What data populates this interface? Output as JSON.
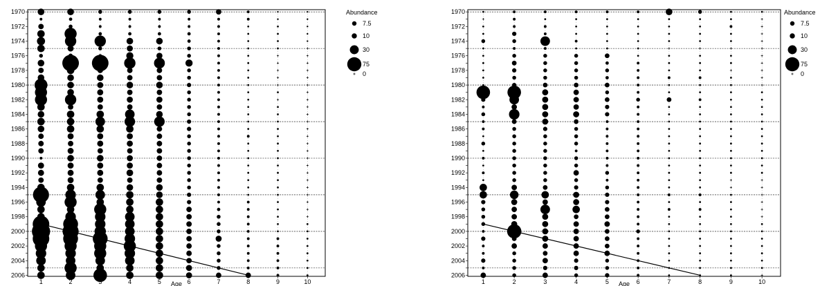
{
  "chart_data": [
    {
      "type": "scatter",
      "subtype": "bubble",
      "title": "",
      "xlabel": "Age",
      "ylabel": "",
      "x": [
        1,
        2,
        3,
        4,
        5,
        6,
        7,
        8,
        9,
        10
      ],
      "xlim": [
        0.55,
        10.6
      ],
      "ylim": [
        1969.7,
        2006.9
      ],
      "y_reversed": true,
      "grid": "horizontal dashed lines at 1970, 1975, 1980, 1985, 1990, 1995, 2000, 2005",
      "legend": {
        "title": "Abundance",
        "placement": "right",
        "entries": [
          {
            "label": "7.5",
            "value": 7.5
          },
          {
            "label": "10",
            "value": 10
          },
          {
            "label": "30",
            "value": 30
          },
          {
            "label": "75",
            "value": 75
          },
          {
            "label": "0",
            "value": 0,
            "marker": "plus"
          }
        ]
      },
      "cohort_line": {
        "from": [
          1,
          1999
        ],
        "to": [
          8,
          2006
        ]
      },
      "cells": {
        "years": [
          1970,
          1971,
          1972,
          1973,
          1974,
          1975,
          1976,
          1977,
          1978,
          1979,
          1980,
          1981,
          1982,
          1983,
          1984,
          1985,
          1986,
          1987,
          1988,
          1989,
          1990,
          1991,
          1992,
          1993,
          1994,
          1995,
          1996,
          1997,
          1998,
          1999,
          2000,
          2001,
          2002,
          2003,
          2004,
          2005,
          2006
        ],
        "abundance_by_year": [
          [
            12,
            12,
            4,
            4,
            4,
            4,
            8,
            2,
            0.5,
            0.5
          ],
          [
            2,
            3,
            2,
            2,
            2,
            2,
            2,
            2,
            0.5,
            0.5
          ],
          [
            8,
            4,
            2,
            2,
            2,
            2,
            2,
            1,
            1,
            0.5
          ],
          [
            15,
            40,
            3,
            3,
            3,
            3,
            2,
            1,
            1,
            0.5
          ],
          [
            18,
            35,
            35,
            12,
            12,
            3,
            2,
            1,
            1,
            0.5
          ],
          [
            15,
            10,
            4,
            10,
            4,
            4,
            2,
            1,
            1,
            0
          ],
          [
            4,
            5,
            3,
            14,
            10,
            4,
            2,
            1,
            0,
            0
          ],
          [
            12,
            75,
            75,
            35,
            32,
            14,
            2,
            1,
            0,
            0
          ],
          [
            8,
            15,
            8,
            8,
            8,
            4,
            2,
            1,
            0,
            0
          ],
          [
            12,
            12,
            12,
            8,
            8,
            4,
            2,
            1,
            0,
            0
          ],
          [
            45,
            12,
            10,
            12,
            12,
            5,
            2,
            1,
            0,
            0
          ],
          [
            40,
            12,
            10,
            8,
            8,
            4,
            2,
            1,
            1,
            0
          ],
          [
            40,
            35,
            10,
            10,
            10,
            4,
            2,
            1,
            0,
            0
          ],
          [
            15,
            8,
            8,
            8,
            8,
            4,
            2,
            1,
            1,
            0
          ],
          [
            12,
            15,
            15,
            25,
            12,
            4,
            2,
            1,
            1,
            0
          ],
          [
            15,
            15,
            25,
            30,
            30,
            5,
            2,
            1,
            1,
            0
          ],
          [
            12,
            15,
            15,
            15,
            8,
            5,
            2,
            1,
            1,
            0
          ],
          [
            8,
            10,
            10,
            10,
            8,
            4,
            2,
            2,
            1,
            0
          ],
          [
            8,
            8,
            10,
            10,
            8,
            4,
            2,
            1,
            1,
            0
          ],
          [
            8,
            10,
            8,
            8,
            8,
            4,
            2,
            1,
            1,
            0
          ],
          [
            2,
            12,
            12,
            10,
            8,
            4,
            2,
            1,
            1,
            0
          ],
          [
            10,
            10,
            10,
            10,
            8,
            4,
            2,
            1,
            1,
            0
          ],
          [
            10,
            10,
            10,
            12,
            8,
            4,
            2,
            1,
            1,
            0
          ],
          [
            8,
            10,
            8,
            8,
            8,
            4,
            2,
            1,
            1,
            0
          ],
          [
            15,
            15,
            15,
            12,
            12,
            4,
            2,
            1,
            1,
            0
          ],
          [
            70,
            30,
            25,
            15,
            12,
            5,
            2,
            1,
            1,
            0
          ],
          [
            25,
            40,
            15,
            15,
            15,
            5,
            2,
            2,
            1,
            0
          ],
          [
            15,
            15,
            40,
            15,
            15,
            8,
            3,
            2,
            1,
            0
          ],
          [
            15,
            30,
            30,
            25,
            15,
            8,
            4,
            2,
            1,
            0
          ],
          [
            75,
            60,
            30,
            25,
            15,
            8,
            4,
            2,
            1,
            1
          ],
          [
            90,
            70,
            35,
            25,
            15,
            8,
            4,
            2,
            1,
            1
          ],
          [
            75,
            60,
            60,
            30,
            15,
            8,
            10,
            2,
            2,
            1
          ],
          [
            40,
            40,
            40,
            40,
            15,
            8,
            4,
            2,
            2,
            1
          ],
          [
            30,
            30,
            40,
            30,
            15,
            8,
            4,
            2,
            2,
            1
          ],
          [
            25,
            25,
            25,
            25,
            15,
            8,
            4,
            2,
            2,
            1
          ],
          [
            15,
            40,
            15,
            15,
            15,
            10,
            4,
            2,
            2,
            1
          ],
          [
            15,
            25,
            50,
            15,
            15,
            10,
            8,
            8,
            2,
            1
          ]
        ]
      }
    },
    {
      "type": "scatter",
      "subtype": "bubble",
      "title": "",
      "xlabel": "Age",
      "ylabel": "",
      "x": [
        1,
        2,
        3,
        4,
        5,
        6,
        7,
        8,
        9,
        10
      ],
      "xlim": [
        0.5,
        10.6
      ],
      "ylim": [
        1969.7,
        2006.9
      ],
      "y_reversed": true,
      "grid": "horizontal dashed lines at 1970, 1975, 1980, 1985, 1990, 1995, 2000, 2005",
      "legend": {
        "title": "Abundance",
        "placement": "right",
        "entries": [
          {
            "label": "7.5",
            "value": 7.5
          },
          {
            "label": "10",
            "value": 10
          },
          {
            "label": "30",
            "value": 30
          },
          {
            "label": "75",
            "value": 75
          },
          {
            "label": "0",
            "value": 0,
            "marker": "plus"
          }
        ]
      },
      "cohort_line": {
        "from": [
          1,
          1999
        ],
        "to": [
          8,
          2006
        ]
      },
      "cells": {
        "years": [
          1970,
          1971,
          1972,
          1973,
          1974,
          1975,
          1976,
          1977,
          1978,
          1979,
          1980,
          1981,
          1982,
          1983,
          1984,
          1985,
          1986,
          1987,
          1988,
          1989,
          1990,
          1991,
          1992,
          1993,
          1994,
          1995,
          1996,
          1997,
          1998,
          1999,
          2000,
          2001,
          2002,
          2003,
          2004,
          2005,
          2006
        ],
        "abundance_by_year": [
          [
            1,
            2,
            2,
            2,
            2,
            2,
            12,
            4,
            1,
            1
          ],
          [
            0,
            2,
            1,
            1,
            1,
            1,
            1,
            1,
            1,
            0
          ],
          [
            1,
            2,
            2,
            1,
            1,
            1,
            1,
            1,
            2,
            0
          ],
          [
            1,
            5,
            2,
            1,
            1,
            1,
            1,
            1,
            1,
            0
          ],
          [
            4,
            4,
            25,
            2,
            1,
            1,
            1,
            1,
            1,
            0
          ],
          [
            1,
            2,
            2,
            1,
            1,
            1,
            0,
            0,
            0,
            0
          ],
          [
            1,
            4,
            4,
            4,
            6,
            1,
            1,
            1,
            1,
            0
          ],
          [
            1,
            6,
            4,
            4,
            3,
            2,
            1,
            1,
            1,
            0
          ],
          [
            1,
            5,
            4,
            4,
            4,
            2,
            1,
            1,
            0,
            0
          ],
          [
            1,
            4,
            4,
            4,
            3,
            2,
            2,
            2,
            1,
            0
          ],
          [
            1,
            5,
            6,
            6,
            6,
            2,
            1,
            1,
            1,
            0
          ],
          [
            50,
            50,
            10,
            8,
            4,
            2,
            1,
            1,
            1,
            1
          ],
          [
            5,
            25,
            10,
            8,
            6,
            4,
            6,
            2,
            1,
            1
          ],
          [
            2,
            8,
            10,
            8,
            5,
            2,
            1,
            1,
            1,
            1
          ],
          [
            4,
            30,
            10,
            10,
            5,
            2,
            1,
            1,
            1,
            1
          ],
          [
            2,
            6,
            10,
            6,
            2,
            2,
            1,
            1,
            1,
            1
          ],
          [
            2,
            4,
            5,
            4,
            2,
            2,
            1,
            1,
            1,
            1
          ],
          [
            1,
            4,
            4,
            4,
            2,
            2,
            1,
            1,
            1,
            1
          ],
          [
            4,
            4,
            4,
            4,
            2,
            2,
            1,
            1,
            1,
            1
          ],
          [
            1,
            4,
            4,
            2,
            2,
            2,
            1,
            1,
            1,
            1
          ],
          [
            2,
            4,
            4,
            4,
            2,
            2,
            1,
            1,
            1,
            1
          ],
          [
            1,
            4,
            4,
            4,
            2,
            2,
            1,
            1,
            1,
            1
          ],
          [
            2,
            4,
            4,
            8,
            4,
            2,
            1,
            1,
            1,
            1
          ],
          [
            1,
            4,
            4,
            4,
            2,
            2,
            1,
            1,
            0,
            0
          ],
          [
            15,
            8,
            6,
            5,
            4,
            2,
            1,
            1,
            0,
            0
          ],
          [
            15,
            20,
            15,
            10,
            5,
            2,
            2,
            2,
            1,
            0
          ],
          [
            5,
            10,
            8,
            10,
            5,
            2,
            1,
            1,
            1,
            0
          ],
          [
            4,
            8,
            25,
            15,
            6,
            2,
            2,
            2,
            1,
            0
          ],
          [
            4,
            8,
            10,
            6,
            6,
            2,
            1,
            1,
            1,
            0
          ],
          [
            4,
            10,
            10,
            8,
            8,
            2,
            1,
            1,
            1,
            1
          ],
          [
            2,
            55,
            10,
            8,
            6,
            4,
            1,
            1,
            1,
            1
          ],
          [
            5,
            6,
            10,
            8,
            6,
            2,
            1,
            1,
            1,
            1
          ],
          [
            2,
            8,
            8,
            8,
            6,
            2,
            1,
            1,
            1,
            1
          ],
          [
            2,
            4,
            6,
            8,
            8,
            2,
            1,
            1,
            1,
            1
          ],
          [
            5,
            4,
            8,
            5,
            4,
            2,
            1,
            1,
            1,
            1
          ],
          [
            2,
            4,
            5,
            5,
            4,
            2,
            1,
            1,
            1,
            1
          ],
          [
            8,
            4,
            8,
            4,
            5,
            2,
            1,
            1,
            1,
            0
          ]
        ]
      }
    }
  ]
}
